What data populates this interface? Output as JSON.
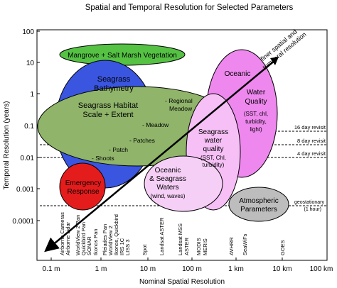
{
  "title": "Spatial and Temporal Resolution for Selected Parameters",
  "y_axis": {
    "label": "Temporal Resolution (years)",
    "scale": "log",
    "ticks": [
      "100",
      "10",
      "1",
      "0.1",
      "0.01",
      "0.001",
      "0.0001"
    ]
  },
  "x_axis": {
    "label": "Nominal Spatial Resolution",
    "scale": "log",
    "ticks": [
      "0.1 m",
      "1 m",
      "10 m",
      "100 m",
      "1 km",
      "10 km",
      "100 km"
    ]
  },
  "revisit_lines": [
    "16 day revisit",
    "8 day revisit",
    "4 day revisit",
    "geostationary",
    "(1 hour)"
  ],
  "sensors": [
    "Airborne Cameras",
    "Airborne Lidar",
    "WorldView 2 Pan",
    "Quickbird Pan",
    "SONAR",
    "Ikonos Pan",
    "Pleiades Pan",
    "WorldView 2",
    "Ikonos, Quickbird",
    "IRS 1C",
    "LISS 3",
    "Spot",
    "Landsat ASTER",
    "Landsat MSS",
    "ASTER",
    "MODIS",
    "MERIS",
    "AVHRR",
    "SeaWiFs",
    "GOES"
  ],
  "ellipses": {
    "mangrove": "Mangrove + Salt Marsh Vegetation",
    "bathymetry_1": "Seagrass",
    "bathymetry_2": "Bathymetry",
    "habitat_1": "Seagrass Habitat",
    "habitat_2": "Scale + Extent",
    "regional_1": "- Regional",
    "regional_2": "Meadow",
    "meadow": "- Meadow",
    "patches": "- Patches",
    "patch": "- Patch",
    "shoots": "- Shoots",
    "oceanic": "Oceanic",
    "wq_1": "Water",
    "wq_2": "Quality",
    "wq_3": "(SST, chl,",
    "wq_4": "turbidity,",
    "wq_5": "light)",
    "sgwq_1": "Seagrass",
    "sgwq_2": "water",
    "sgwq_3": "quality",
    "sgwq_4": "(SST, Chl,",
    "sgwq_5": "turbidity)",
    "osw_1": "Oceanic",
    "osw_2": "& Seagrass",
    "osw_3": "Waters",
    "osw_4": "(wind, waves)",
    "emergency_1": "Emergency",
    "emergency_2": "Response",
    "atmo_1": "Atmospheric",
    "atmo_2": "Parameters"
  },
  "arrow_label_1": "finer spatial and",
  "arrow_label_2": "temporal resolution",
  "colors": {
    "mangrove": "#55c244",
    "bathymetry": "#3a55e0",
    "habitat": "#8fb46a",
    "oceanic_water_quality": "#ee88ee",
    "seagrass_water_quality": "#f6c0f6",
    "oceanic_seagrass_waters": "#f6cff6",
    "emergency": "#e51c1c",
    "atmospheric": "#bdbdbd"
  }
}
